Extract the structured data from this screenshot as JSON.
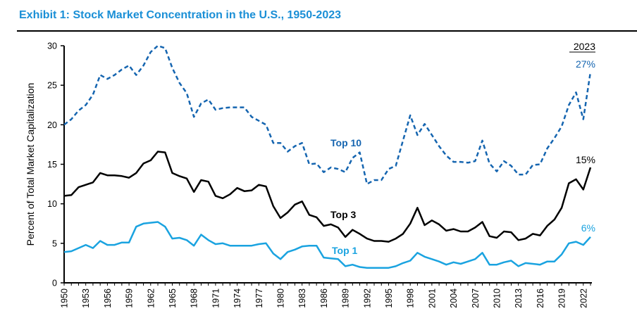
{
  "title": "Exhibit 1: Stock Market Concentration in the U.S., 1950-2023",
  "chart_data": {
    "type": "line",
    "title": "Exhibit 1: Stock Market Concentration in the U.S., 1950-2023",
    "xlabel": "",
    "ylabel": "Percent of Total Market Capitalization",
    "ylim": [
      0,
      30
    ],
    "yticks": [
      0,
      5,
      10,
      15,
      20,
      25,
      30
    ],
    "xlim": [
      1950,
      2023
    ],
    "xtick_labels": [
      "1950",
      "1953",
      "1956",
      "1959",
      "1962",
      "1965",
      "1968",
      "1971",
      "1974",
      "1977",
      "1980",
      "1983",
      "1986",
      "1989",
      "1992",
      "1995",
      "1998",
      "2001",
      "2004",
      "2007",
      "2010",
      "2013",
      "2016",
      "2019",
      "2022"
    ],
    "grid": false,
    "end_header": "2023",
    "x": [
      1950,
      1951,
      1952,
      1953,
      1954,
      1955,
      1956,
      1957,
      1958,
      1959,
      1960,
      1961,
      1962,
      1963,
      1964,
      1965,
      1966,
      1967,
      1968,
      1969,
      1970,
      1971,
      1972,
      1973,
      1974,
      1975,
      1976,
      1977,
      1978,
      1979,
      1980,
      1981,
      1982,
      1983,
      1984,
      1985,
      1986,
      1987,
      1988,
      1989,
      1990,
      1991,
      1992,
      1993,
      1994,
      1995,
      1996,
      1997,
      1998,
      1999,
      2000,
      2001,
      2002,
      2003,
      2004,
      2005,
      2006,
      2007,
      2008,
      2009,
      2010,
      2011,
      2012,
      2013,
      2014,
      2015,
      2016,
      2017,
      2018,
      2019,
      2020,
      2021,
      2022,
      2023
    ],
    "series": [
      {
        "name": "Top 10",
        "color": "#1565b0",
        "style": "dashed",
        "end_label": "27%",
        "values": [
          20.0,
          20.7,
          21.8,
          22.5,
          23.8,
          26.3,
          25.8,
          26.3,
          27.0,
          27.5,
          26.3,
          27.5,
          29.2,
          30.0,
          29.7,
          27.2,
          25.3,
          24.0,
          21.0,
          22.7,
          23.2,
          21.9,
          22.1,
          22.2,
          22.2,
          22.2,
          21.0,
          20.5,
          20.0,
          17.7,
          17.7,
          16.6,
          17.3,
          17.7,
          15.0,
          15.1,
          14.0,
          14.6,
          14.4,
          14.0,
          15.8,
          16.5,
          12.5,
          13.0,
          13.0,
          14.4,
          14.8,
          18.0,
          21.2,
          18.7,
          20.1,
          18.7,
          17.3,
          16.1,
          15.3,
          15.3,
          15.2,
          15.4,
          18.0,
          15.1,
          14.1,
          15.4,
          14.8,
          13.7,
          13.7,
          14.9,
          15.0,
          17.0,
          18.3,
          19.8,
          22.5,
          24.1,
          20.7,
          26.7
        ]
      },
      {
        "name": "Top 3",
        "color": "#000000",
        "style": "solid",
        "end_label": "15%",
        "values": [
          11.0,
          11.1,
          12.1,
          12.4,
          12.7,
          13.9,
          13.6,
          13.6,
          13.5,
          13.3,
          13.9,
          15.1,
          15.5,
          16.6,
          16.5,
          13.9,
          13.5,
          13.2,
          11.5,
          13.0,
          12.8,
          11.0,
          10.7,
          11.2,
          12.0,
          11.6,
          11.7,
          12.4,
          12.2,
          9.7,
          8.2,
          8.9,
          9.9,
          10.3,
          8.6,
          8.3,
          7.2,
          7.4,
          7.0,
          5.8,
          6.7,
          6.2,
          5.6,
          5.3,
          5.3,
          5.2,
          5.6,
          6.2,
          7.5,
          9.5,
          7.3,
          7.9,
          7.4,
          6.6,
          6.8,
          6.5,
          6.5,
          7.0,
          7.7,
          5.9,
          5.7,
          6.5,
          6.4,
          5.4,
          5.6,
          6.2,
          6.0,
          7.2,
          8.0,
          9.5,
          12.6,
          13.1,
          11.8,
          14.6
        ]
      },
      {
        "name": "Top 1",
        "color": "#1aa3e0",
        "style": "solid",
        "end_label": "6%",
        "values": [
          3.9,
          4.0,
          4.4,
          4.8,
          4.4,
          5.3,
          4.8,
          4.8,
          5.1,
          5.1,
          7.1,
          7.5,
          7.6,
          7.7,
          7.1,
          5.6,
          5.7,
          5.4,
          4.7,
          6.1,
          5.4,
          4.9,
          5.0,
          4.7,
          4.7,
          4.7,
          4.7,
          4.9,
          5.0,
          3.7,
          3.0,
          3.9,
          4.2,
          4.6,
          4.7,
          4.7,
          3.2,
          3.1,
          3.0,
          2.1,
          2.3,
          2.0,
          1.9,
          1.9,
          1.9,
          1.9,
          2.1,
          2.5,
          2.8,
          3.8,
          3.3,
          3.0,
          2.7,
          2.3,
          2.6,
          2.4,
          2.7,
          3.0,
          3.8,
          2.3,
          2.3,
          2.6,
          2.8,
          2.1,
          2.5,
          2.4,
          2.3,
          2.7,
          2.7,
          3.6,
          5.0,
          5.2,
          4.8,
          5.8
        ]
      }
    ]
  }
}
